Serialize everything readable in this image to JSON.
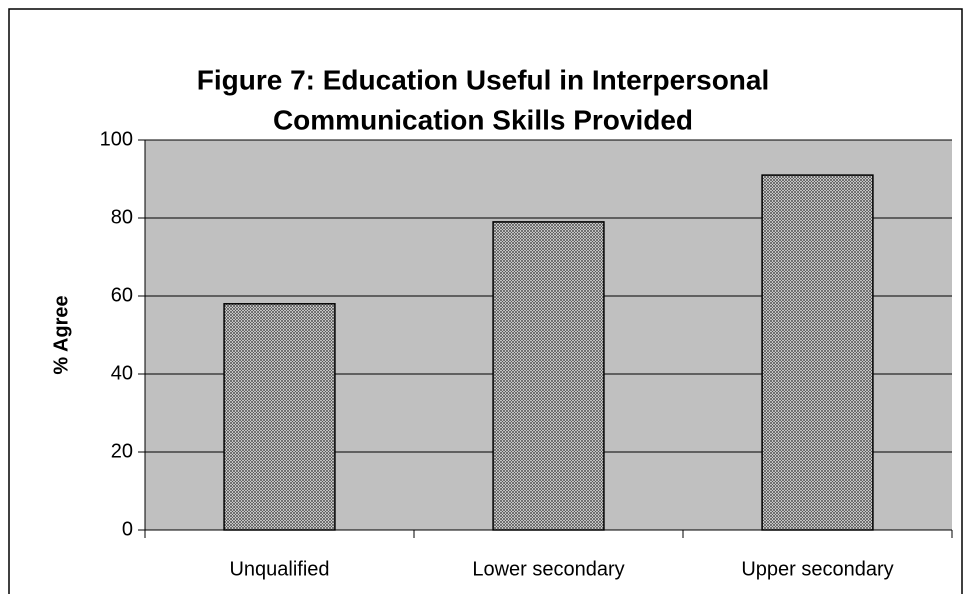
{
  "chart_data": {
    "type": "bar",
    "title": [
      "Figure 7: Education Useful in Interpersonal",
      "Communication Skills Provided"
    ],
    "y_label": "% Agree",
    "categories": [
      "Unqualified",
      "Lower secondary",
      "Upper secondary"
    ],
    "values": [
      58,
      79,
      91
    ],
    "color": "#555555",
    "ylim": [
      0,
      100
    ],
    "yticks": [
      0,
      20,
      40,
      60,
      80,
      100
    ],
    "grid": true
  }
}
